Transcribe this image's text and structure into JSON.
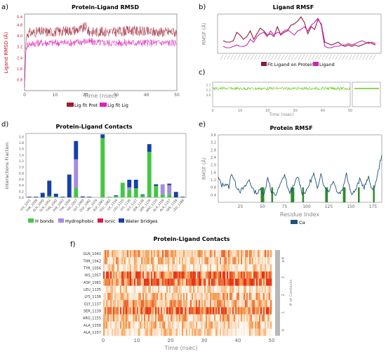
{
  "panels": {
    "a": {
      "letter": "a)"
    },
    "b": {
      "letter": "b)"
    },
    "c": {
      "letter": "c)"
    },
    "d": {
      "letter": "d)"
    },
    "e": {
      "letter": "e)"
    },
    "f": {
      "letter": "f)"
    }
  },
  "chart_data": [
    {
      "id": "a",
      "type": "line",
      "title": "Protein-Ligand RMSD",
      "xlabel": "Time (nsec)",
      "ylabel": "Ligand RMSD (Å)",
      "xlim": [
        0,
        50
      ],
      "ylim": [
        0,
        5.6
      ],
      "xticks": [
        "0",
        "10",
        "20",
        "30",
        "40",
        "50"
      ],
      "yticks": [
        "0.8",
        "1.6",
        "2.4",
        "3.2",
        "4.0",
        "4.8",
        "5.4"
      ],
      "series": [
        {
          "name": "Lig fit Prot",
          "color": "#9e1a2e",
          "x": [
            0,
            0.5,
            1,
            5,
            10,
            15,
            19,
            20,
            21,
            25,
            30,
            35,
            40,
            45,
            50
          ],
          "y": [
            0.3,
            3.8,
            4.2,
            4.3,
            4.3,
            4.4,
            4.5,
            4.7,
            4.3,
            4.3,
            4.3,
            4.4,
            4.3,
            4.3,
            4.3
          ]
        },
        {
          "name": "Lig fit Lig",
          "color": "#e020b8",
          "x": [
            0,
            0.5,
            1,
            5,
            10,
            15,
            20,
            25,
            30,
            35,
            40,
            45,
            50
          ],
          "y": [
            0.2,
            3.1,
            3.4,
            3.5,
            3.5,
            3.5,
            3.6,
            3.5,
            3.5,
            3.5,
            3.5,
            3.5,
            3.5
          ]
        }
      ],
      "legend": "bottom"
    },
    {
      "id": "b",
      "type": "line",
      "title": "Ligand RMSF",
      "ylabel": "RMSF (Å)",
      "series": [
        {
          "name": "Fit Ligand on Protein",
          "color": "#8b1a3a",
          "values": [
            0.9,
            0.8,
            0.8,
            0.9,
            1.5,
            1.3,
            1.0,
            1.2,
            1.6,
            1.0,
            1.4,
            1.8,
            1.6,
            1.3,
            1.4,
            1.2,
            1.9,
            1.3,
            1.5,
            1.6,
            2.0,
            2.1,
            2.3,
            2.6,
            2.2,
            1.4,
            1.9,
            1.7,
            2.4,
            2.1,
            0.8,
            0.7,
            0.6,
            0.7,
            0.8,
            0.6,
            0.5,
            0.6,
            0.5,
            0.6,
            0.5,
            0.6,
            0.7,
            0.8,
            0.7,
            0.6
          ]
        },
        {
          "name": "Ligand",
          "color": "#cc22bb",
          "values": [
            0.5,
            0.4,
            0.4,
            0.5,
            0.6,
            0.5,
            0.5,
            0.6,
            1.0,
            0.8,
            1.2,
            1.4,
            1.5,
            1.2,
            1.6,
            1.3,
            1.5,
            1.4,
            1.6,
            1.7,
            1.5,
            1.3,
            1.6,
            1.7,
            1.9,
            1.6,
            2.0,
            2.2,
            2.5,
            2.0,
            0.5,
            0.4,
            0.4,
            0.5,
            0.5,
            0.6,
            0.6,
            0.7,
            0.6,
            0.7,
            0.8,
            0.9,
            0.8,
            0.7,
            0.8,
            0.7
          ]
        }
      ],
      "legend": "bottom"
    },
    {
      "id": "c",
      "type": "line",
      "xlabel": "Time (nsec)",
      "xlim": [
        0,
        50
      ],
      "xticks": [
        "0",
        "10",
        "20",
        "30",
        "40",
        "50"
      ],
      "yticks": [
        "5.7",
        "5.2",
        "4.8"
      ],
      "series": [
        {
          "color": "#66cc22",
          "x": [
            0,
            10,
            20,
            30,
            40,
            50
          ],
          "y": [
            5.5,
            5.5,
            5.5,
            5.5,
            5.5,
            5.5
          ]
        }
      ]
    },
    {
      "id": "d",
      "type": "bar",
      "title": "Protein-Ligand Contacts",
      "ylabel": "Interactions Fraction",
      "ylim": [
        0,
        2.1
      ],
      "yticks": [
        "0.0",
        "0.2",
        "0.4",
        "0.6",
        "0.8",
        "1.0",
        "1.2",
        "1.4",
        "1.6",
        "1.8",
        "2.0"
      ],
      "categories": [
        "LYS_1031",
        "THR_1038",
        "GLN_1040",
        "GLN_1041",
        "THR_1042",
        "PHE_1043",
        "TYR_1056",
        "HIS_1057",
        "GLY_1060",
        "GLU_1062",
        "VAL_1079",
        "ASP_1081",
        "GLU_1082",
        "ILE_1134",
        "LEU_1135",
        "LYS_1136",
        "GLY_1137",
        "SER_1138",
        "SER_1139",
        "ARG_1155",
        "ALA_1156",
        "ALA_1157",
        "SER_1159",
        "LEU_1188"
      ],
      "series": [
        {
          "name": "H bonds",
          "color": "#44c744",
          "values": [
            0,
            0,
            0,
            0.05,
            0.02,
            0,
            0,
            0.3,
            0,
            0,
            0,
            1.95,
            0.02,
            0.05,
            0.48,
            0.25,
            0.3,
            0.08,
            1.5,
            0.38,
            0.1,
            0.1,
            0,
            0
          ]
        },
        {
          "name": "Hydrophobic",
          "color": "#a48be0",
          "values": [
            0,
            0,
            0,
            0,
            0,
            0,
            0,
            0.95,
            0,
            0,
            0,
            0,
            0,
            0,
            0,
            0.08,
            0,
            0,
            0,
            0,
            0.33,
            0.3,
            0,
            0
          ]
        },
        {
          "name": "Ionic",
          "color": "#d81b4a",
          "values": [
            0,
            0,
            0,
            0,
            0,
            0,
            0,
            0,
            0,
            0,
            0,
            0,
            0,
            0,
            0,
            0,
            0,
            0,
            0,
            0,
            0,
            0,
            0,
            0
          ]
        },
        {
          "name": "Water bridges",
          "color": "#1740a8",
          "values": [
            0.02,
            0.02,
            0.15,
            0.5,
            0.1,
            0.02,
            0.75,
            0.6,
            0.03,
            0.02,
            0,
            0.12,
            0,
            0.02,
            0,
            0.25,
            0.28,
            0.02,
            0.25,
            0.05,
            0,
            0.05,
            0.18,
            0.02
          ]
        }
      ],
      "legend": "bottom"
    },
    {
      "id": "e",
      "type": "line",
      "title": "Protein RMSF",
      "xlabel": "Residue Index",
      "ylabel": "RMSF (Å)",
      "xlim": [
        0,
        185
      ],
      "ylim": [
        0,
        3.6
      ],
      "xticks": [
        "25",
        "50",
        "75",
        "100",
        "125",
        "150",
        "175"
      ],
      "yticks": [
        "0.4",
        "0.8",
        "1.2",
        "1.6",
        "2.0",
        "2.4",
        "2.8",
        "3.2",
        "3.6"
      ],
      "series": [
        {
          "name": "Cα",
          "color": "#1e5577",
          "x": [
            0,
            4,
            8,
            12,
            15,
            20,
            25,
            30,
            35,
            40,
            45,
            48,
            52,
            56,
            60,
            65,
            70,
            75,
            80,
            85,
            90,
            95,
            100,
            104,
            108,
            112,
            116,
            120,
            125,
            130,
            135,
            140,
            145,
            150,
            155,
            160,
            165,
            170,
            175,
            180,
            185
          ],
          "y": [
            1.3,
            0.9,
            1.0,
            0.8,
            1.6,
            0.9,
            0.6,
            0.8,
            1.2,
            0.6,
            0.5,
            0.7,
            0.4,
            1.4,
            0.5,
            0.4,
            0.9,
            1.5,
            0.5,
            0.8,
            1.4,
            0.5,
            0.6,
            1.1,
            1.5,
            0.7,
            1.6,
            0.8,
            0.6,
            1.2,
            0.5,
            0.6,
            1.6,
            0.5,
            0.6,
            1.2,
            0.8,
            1.3,
            0.6,
            1.4,
            2.6
          ]
        }
      ],
      "highlight_ranges": [
        [
          48,
          52
        ],
        [
          60,
          62
        ],
        [
          82,
          86
        ],
        [
          95,
          97
        ],
        [
          121,
          124
        ],
        [
          141,
          144
        ],
        [
          158,
          160
        ],
        [
          175,
          177
        ]
      ],
      "legend": "bottom"
    },
    {
      "id": "f",
      "type": "heatmap",
      "title": "Protein-Ligand Contacts",
      "xlabel": "Time (nsec)",
      "xlim": [
        0,
        50
      ],
      "xticks": [
        "0",
        "10",
        "20",
        "30",
        "40",
        "50"
      ],
      "rows": [
        "GLN_1041",
        "THR_1042",
        "TYR_1056",
        "HIS_1057",
        "ASP_1081",
        "LEU_1135",
        "LYS_1136",
        "GLY_1137",
        "SER_1139",
        "ARG_1155",
        "ALA_1156",
        "ALA_1157"
      ],
      "row_intensity": [
        0.45,
        0.3,
        0.2,
        0.8,
        0.85,
        0.15,
        0.35,
        0.45,
        0.75,
        0.35,
        0.3,
        0.15
      ],
      "colorbar_ticks": [
        "≥4",
        "3",
        "2",
        "1",
        "0"
      ],
      "colorbar_label": "# of Contacts",
      "colors": {
        "low": "#fff7ee",
        "mid": "#f5a055",
        "high": "#e6321a"
      }
    }
  ],
  "legend_labels": {
    "a": [
      "Lig fit Prot",
      "Lig fit Lig"
    ],
    "b": [
      "Fit Ligand on Protein",
      "Ligand"
    ],
    "d": [
      "H bonds",
      "Hydrophobic",
      "Ionic",
      "Water bridges"
    ],
    "e": [
      "Cα"
    ]
  }
}
